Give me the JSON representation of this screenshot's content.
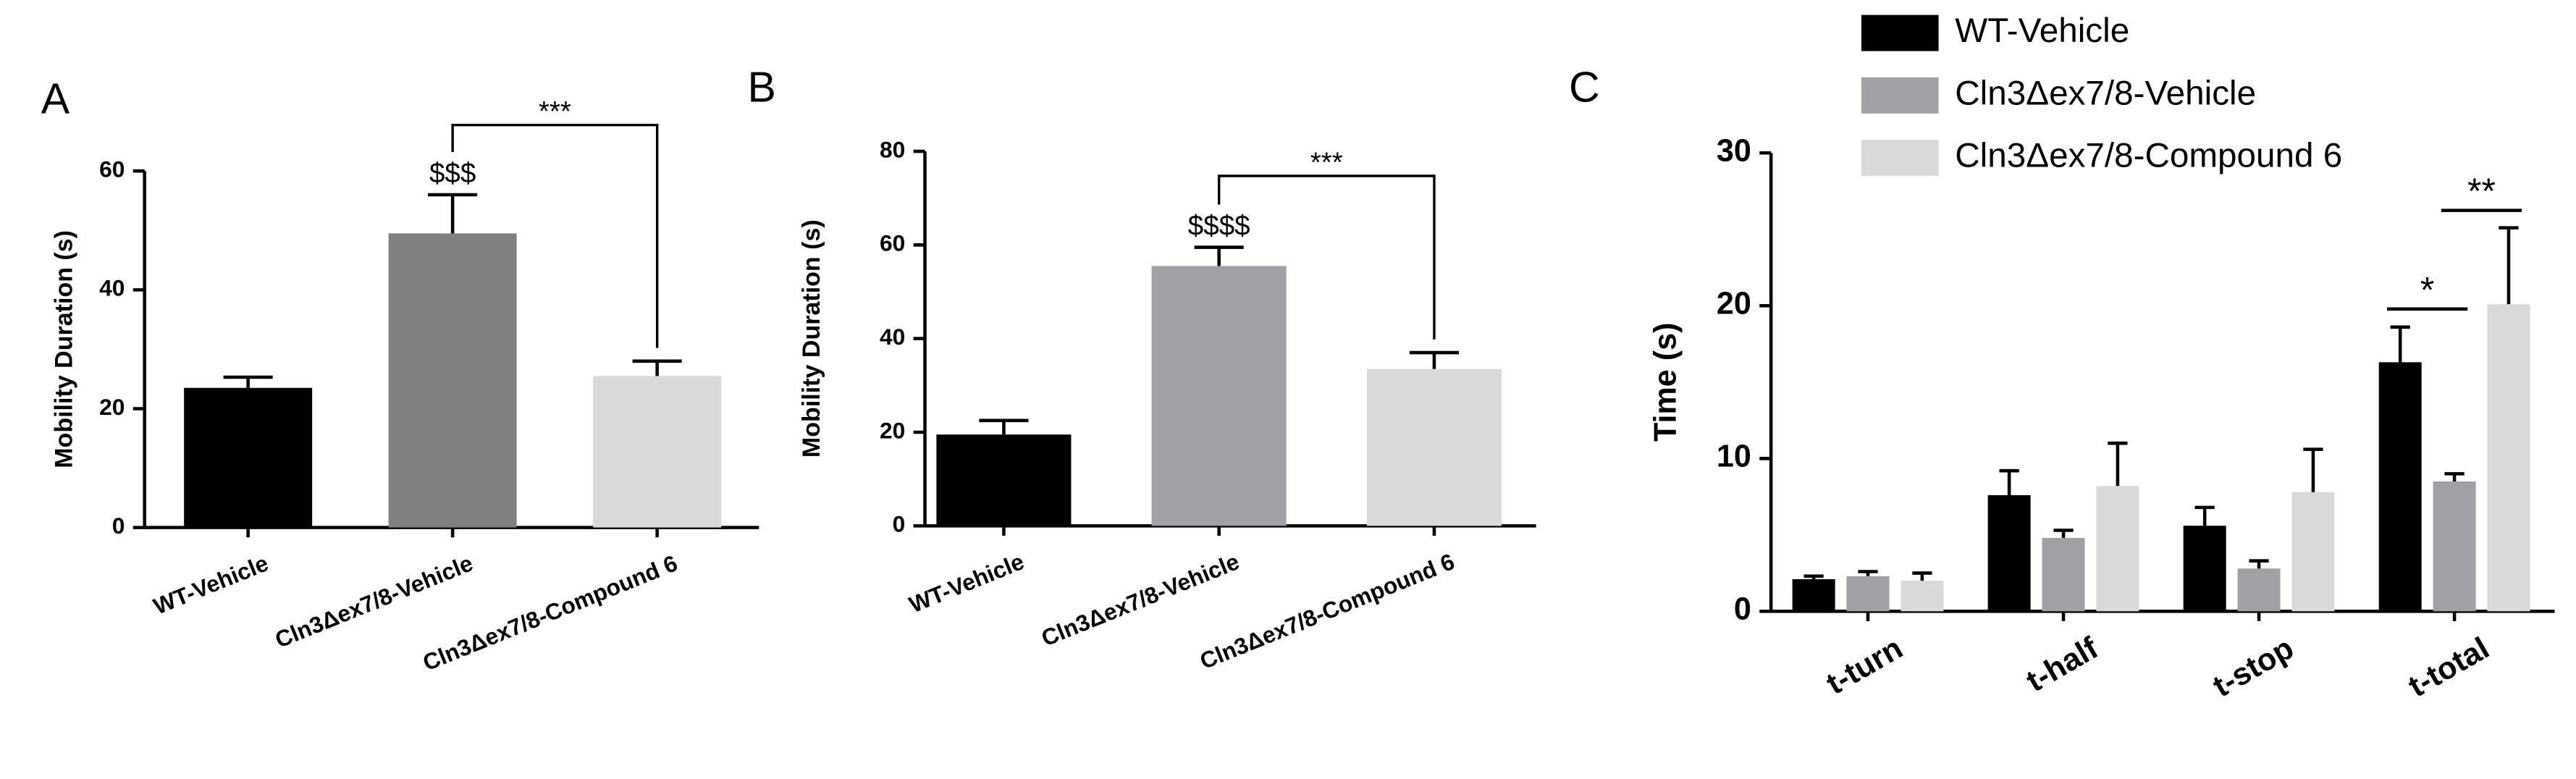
{
  "chart_data": [
    {
      "type": "bar",
      "panel": "A",
      "ylabel": "Mobility Duration (s)",
      "categories": [
        "WT-Vehicle",
        "Cln3Δex7/8-Vehicle",
        "Cln3Δex7/8-Compound 6"
      ],
      "values": [
        23.5,
        49.5,
        25.5
      ],
      "errors": [
        1.8,
        6.5,
        2.5
      ],
      "colors": [
        "#000000",
        "#808080",
        "#d9d9d9"
      ],
      "ylim": [
        0,
        60
      ],
      "yticks": [
        0,
        20,
        40,
        60
      ],
      "annotations": [
        "$$$",
        "***"
      ]
    },
    {
      "type": "bar",
      "panel": "B",
      "ylabel": "Mobility Duration (s)",
      "categories": [
        "WT-Vehicle",
        "Cln3Δex7/8-Vehicle",
        "Cln3Δex7/8-Compound 6"
      ],
      "values": [
        19.5,
        55.5,
        33.5
      ],
      "errors": [
        3,
        4,
        3.5
      ],
      "colors": [
        "#000000",
        "#a0a0a5",
        "#d9d9d9"
      ],
      "ylim": [
        0,
        80
      ],
      "yticks": [
        0,
        20,
        40,
        60,
        80
      ],
      "annotations": [
        "$$$$",
        "***"
      ]
    },
    {
      "type": "grouped-bar",
      "panel": "C",
      "ylabel": "Time (s)",
      "categories": [
        "t-turn",
        "t-half",
        "t-stop",
        "t-total"
      ],
      "series": [
        {
          "name": "WT-Vehicle",
          "color": "#000000",
          "values": [
            2.1,
            7.6,
            5.6,
            16.3
          ],
          "errors": [
            0.2,
            1.6,
            1.2,
            2.3
          ]
        },
        {
          "name": "Cln3Δex7/8-Vehicle",
          "color": "#a0a0a5",
          "values": [
            2.3,
            4.8,
            2.8,
            8.5
          ],
          "errors": [
            0.3,
            0.5,
            0.5,
            0.5
          ]
        },
        {
          "name": "Cln3Δex7/8-Compound 6",
          "color": "#d9d9d9",
          "values": [
            2.0,
            8.2,
            7.8,
            20.1
          ],
          "errors": [
            0.5,
            2.8,
            2.8,
            5.0
          ]
        }
      ],
      "ylim": [
        0,
        30
      ],
      "yticks": [
        0,
        10,
        20,
        30
      ],
      "legend": "top",
      "annotations": [
        "*",
        "**"
      ]
    }
  ]
}
